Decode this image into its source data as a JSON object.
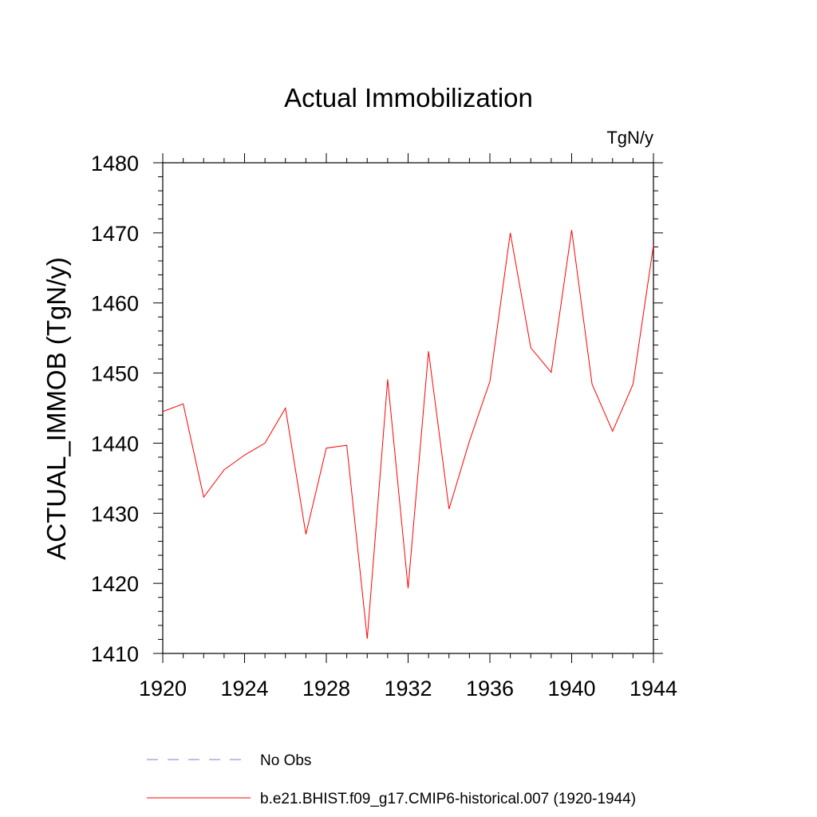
{
  "chart_data": {
    "type": "line",
    "title": "Actual Immobilization",
    "units_label": "TgN/y",
    "ylabel": "ACTUAL_IMMOB  (TgN/y)",
    "xlabel": "",
    "xlim": [
      1920,
      1944
    ],
    "ylim": [
      1410,
      1480
    ],
    "x_ticks": [
      1920,
      1924,
      1928,
      1932,
      1936,
      1940,
      1944
    ],
    "y_ticks": [
      1410,
      1420,
      1430,
      1440,
      1450,
      1460,
      1470,
      1480
    ],
    "x_minor_step": 1,
    "y_minor_step": 2,
    "grid": false,
    "legend_position": "bottom",
    "series": [
      {
        "name": "b.e21.BHIST.f09_g17.CMIP6-historical.007 (1920-1944)",
        "color": "#ff0000",
        "style": "solid",
        "x": [
          1920,
          1921,
          1922,
          1923,
          1924,
          1925,
          1926,
          1927,
          1928,
          1929,
          1930,
          1931,
          1932,
          1933,
          1934,
          1935,
          1936,
          1937,
          1938,
          1939,
          1940,
          1941,
          1942,
          1943,
          1944
        ],
        "values": [
          1444.5,
          1445.6,
          1432.3,
          1436.2,
          1438.3,
          1440.0,
          1445.0,
          1427.0,
          1439.3,
          1439.7,
          1412.1,
          1449.1,
          1419.3,
          1453.1,
          1430.6,
          1440.3,
          1448.8,
          1470.0,
          1453.6,
          1450.1,
          1470.4,
          1448.4,
          1441.7,
          1448.4,
          1468.2
        ]
      }
    ],
    "legend": [
      {
        "label": "No Obs",
        "color": "#8080c0",
        "style": "dashed"
      },
      {
        "label": "b.e21.BHIST.f09_g17.CMIP6-historical.007 (1920-1944)",
        "color": "#ff0000",
        "style": "solid"
      }
    ]
  }
}
